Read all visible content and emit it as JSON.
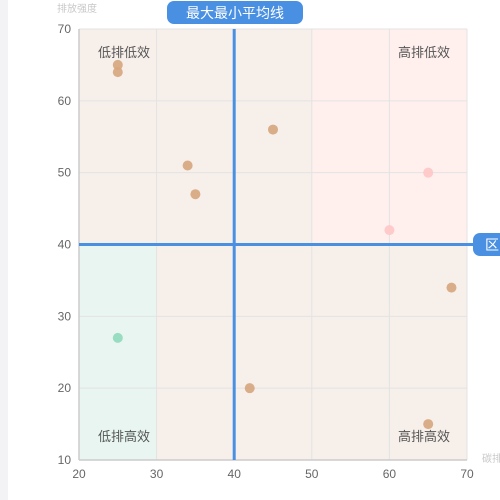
{
  "chart_data": {
    "type": "scatter",
    "xlabel": "碳排",
    "ylabel": "排放强度",
    "xlim": [
      20,
      70
    ],
    "ylim": [
      10,
      70
    ],
    "x_ticks": [
      "20",
      "30",
      "40",
      "50",
      "60",
      "70"
    ],
    "y_ticks": [
      "10",
      "20",
      "30",
      "40",
      "50",
      "60",
      "70"
    ],
    "grid": true,
    "points": [
      {
        "x": 25,
        "y": 65,
        "color": "#d6a57e"
      },
      {
        "x": 25,
        "y": 64,
        "color": "#d6a57e"
      },
      {
        "x": 45,
        "y": 56,
        "color": "#d6a57e"
      },
      {
        "x": 34,
        "y": 51,
        "color": "#d6a57e"
      },
      {
        "x": 35,
        "y": 47,
        "color": "#d6a57e"
      },
      {
        "x": 65,
        "y": 50,
        "color": "#ffc5c5"
      },
      {
        "x": 60,
        "y": 42,
        "color": "#ffc5c5"
      },
      {
        "x": 68,
        "y": 34,
        "color": "#d6a57e"
      },
      {
        "x": 25,
        "y": 27,
        "color": "#8fd9bd"
      },
      {
        "x": 42,
        "y": 20,
        "color": "#d6a57e"
      },
      {
        "x": 65,
        "y": 15,
        "color": "#d6a57e"
      }
    ],
    "regions": [
      {
        "x": [
          20,
          30
        ],
        "y": [
          10,
          40
        ],
        "color": "#e8f5f0"
      },
      {
        "x": [
          30,
          50
        ],
        "y": [
          10,
          70
        ],
        "color": "#f7efea"
      },
      {
        "x": [
          20,
          30
        ],
        "y": [
          40,
          70
        ],
        "color": "#f7efea"
      },
      {
        "x": [
          50,
          70
        ],
        "y": [
          40,
          70
        ],
        "color": "#fff0ee"
      },
      {
        "x": [
          50,
          70
        ],
        "y": [
          10,
          40
        ],
        "color": "#f7efea"
      }
    ],
    "quadrant_labels": {
      "top_left": "低排低效",
      "top_right": "高排低效",
      "bottom_left": "低排高效",
      "bottom_right": "高排高效"
    },
    "mean_lines": {
      "x": 40,
      "y": 40,
      "color": "#4a90e2",
      "vertical_label": "最大最小平均线",
      "horizontal_label": "区"
    }
  }
}
